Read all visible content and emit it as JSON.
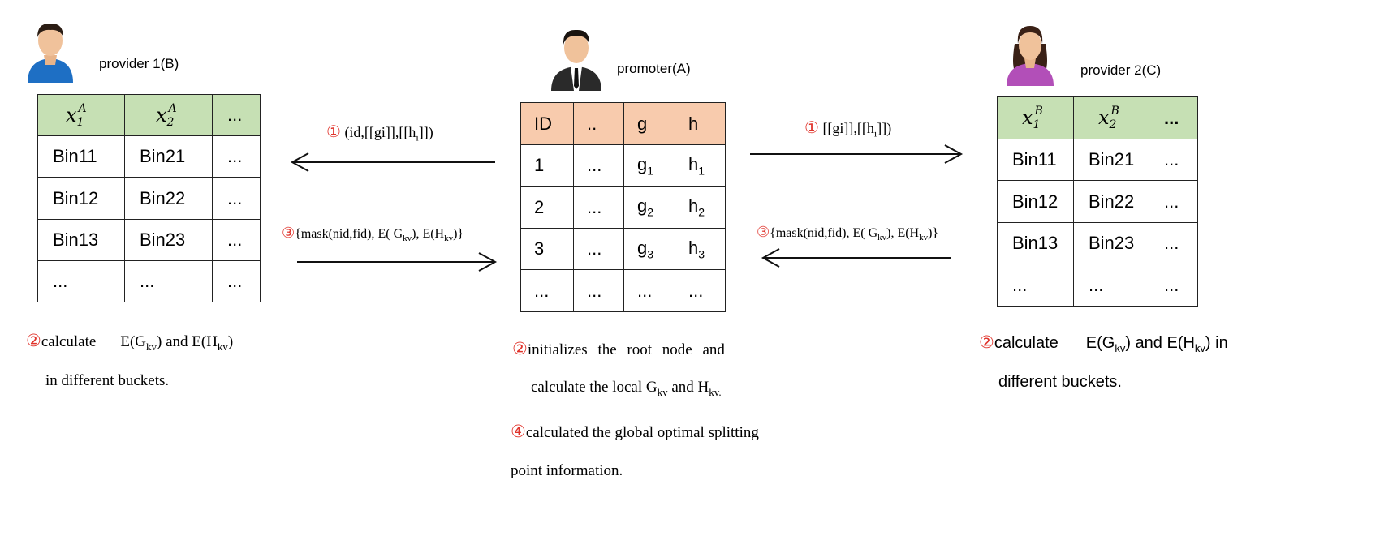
{
  "parties": {
    "left": {
      "label": "provider 1(B)",
      "columns": [
        {
          "base": "x",
          "sub": "1",
          "sup": "A"
        },
        {
          "base": "x",
          "sub": "2",
          "sup": "A"
        },
        {
          "text": "..."
        }
      ],
      "rows": [
        [
          "Bin11",
          "Bin21",
          "..."
        ],
        [
          "Bin12",
          "Bin22",
          "..."
        ],
        [
          "Bin13",
          "Bin23",
          "..."
        ],
        [
          "...",
          "...",
          "..."
        ]
      ],
      "note": {
        "num": "②",
        "line1_a": "calculate",
        "line1_b": "E(G",
        "kv": "kv",
        "line1_c": ") and E(H",
        "line1_d": ")",
        "line2": "in different buckets."
      }
    },
    "center": {
      "label": "promoter(A)",
      "headers": [
        "ID",
        "..",
        "g",
        "h"
      ],
      "rows": [
        {
          "id": "1",
          "dots": "...",
          "g": "g",
          "gsub": "1",
          "h": "h",
          "hsub": "1"
        },
        {
          "id": "2",
          "dots": "...",
          "g": "g",
          "gsub": "2",
          "h": "h",
          "hsub": "2"
        },
        {
          "id": "3",
          "dots": "...",
          "g": "g",
          "gsub": "3",
          "h": "h",
          "hsub": "3"
        }
      ],
      "last_row": [
        "...",
        "...",
        "...",
        "..."
      ],
      "note1": {
        "num": "②",
        "line1": "initializes  the  root  node  and",
        "line2_a": "calculate the local G",
        "kv": "kv",
        "line2_b": " and H",
        "line2_c": "kv."
      },
      "note2": {
        "num": "④",
        "line1": "calculated the global optimal splitting",
        "line2": "point information."
      }
    },
    "right": {
      "label": "provider 2(C)",
      "columns": [
        {
          "base": "x",
          "sub": "1",
          "sup": "B"
        },
        {
          "base": "x",
          "sub": "2",
          "sup": "B"
        },
        {
          "text": "..."
        }
      ],
      "rows": [
        [
          "Bin11",
          "Bin21",
          "..."
        ],
        [
          "Bin12",
          "Bin22",
          "..."
        ],
        [
          "Bin13",
          "Bin23",
          "..."
        ],
        [
          "...",
          "...",
          "..."
        ]
      ],
      "note": {
        "num": "②",
        "line1_a": "calculate",
        "line1_b": "E(G",
        "kv": "kv",
        "line1_c": ") and E(H",
        "line1_d": ") in",
        "line2": "different buckets."
      }
    }
  },
  "messages": {
    "to_left": {
      "num": "①",
      "text_a": " (id,[[gi]],[[h",
      "sub": "i",
      "text_b": "]])"
    },
    "from_left": {
      "num": "③",
      "text_a": "{mask(nid,fid), E( G",
      "sub1": "kv",
      "text_b": "), E(H",
      "sub2": "kv",
      "text_c": ")}"
    },
    "to_right": {
      "num": "①",
      "text_a": " [[gi]],[[h",
      "sub": "i",
      "text_b": "]])"
    },
    "from_right": {
      "num": "③",
      "text_a": "{mask(nid,fid), E( G",
      "sub1": "kv",
      "text_b": "), E(H",
      "sub2": "kv",
      "text_c": ")}"
    }
  },
  "colors": {
    "green_header": "#c6e0b4",
    "orange_header": "#f8cbad",
    "step_number": "#e0332b",
    "provider1_shirt": "#1e6fc4",
    "provider2_shirt": "#b24fb8",
    "promoter_suit": "#2a2a2a"
  }
}
